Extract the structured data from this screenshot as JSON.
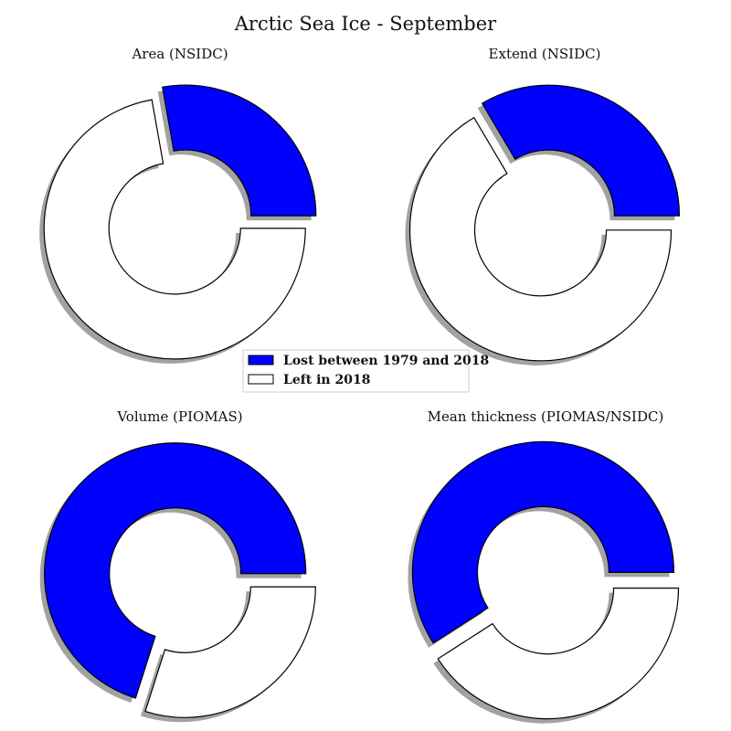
{
  "chart_data": {
    "type": "pie",
    "title": "Arctic Sea Ice - September",
    "legend": {
      "placement": "center",
      "entries": [
        {
          "label": "Lost between 1979 and 2018",
          "color": "#0000ff"
        },
        {
          "label": "Left in 2018",
          "color": "#ffffff"
        }
      ]
    },
    "charts": [
      {
        "title": "Area (NSIDC)",
        "lost_fraction": 0.278,
        "left_fraction": 0.722
      },
      {
        "title": "Extend (NSIDC)",
        "lost_fraction": 0.335,
        "left_fraction": 0.665
      },
      {
        "title": "Volume (PIOMAS)",
        "lost_fraction": 0.701,
        "left_fraction": 0.299
      },
      {
        "title": "Mean thickness (PIOMAS/NSIDC)",
        "lost_fraction": 0.591,
        "left_fraction": 0.409
      }
    ]
  },
  "colors": {
    "lost": "#0000ff",
    "left": "#ffffff",
    "edge": "#000000",
    "shadow": "#555555"
  }
}
